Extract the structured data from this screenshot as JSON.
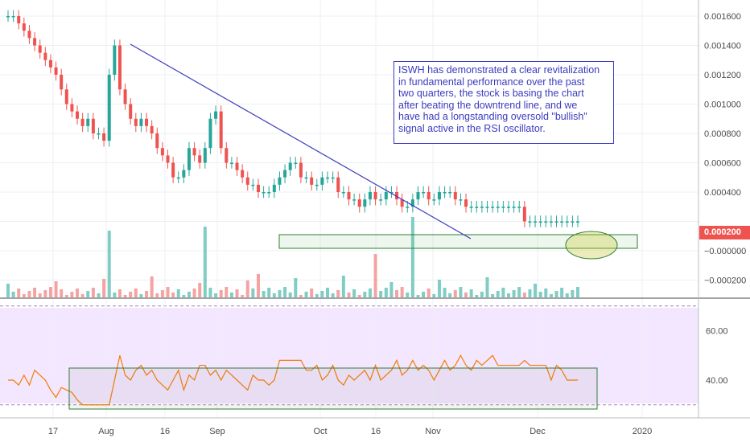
{
  "chart_data": [
    {
      "type": "bar",
      "panel": "price",
      "symbol": "ISWH",
      "x_ticks": [
        "17",
        "Aug",
        "16",
        "Sep",
        "Oct",
        "16",
        "Nov",
        "Dec",
        "2020"
      ],
      "y_ticks": [
        "0.001600",
        "0.001400",
        "0.001200",
        "0.001000",
        "0.000800",
        "0.000600",
        "0.000400",
        "0.000200",
        "−0.000000",
        "−0.000200"
      ],
      "ylim": [
        -0.0002,
        0.0017
      ],
      "current_price": "0.000200",
      "annotation": "ISWH has demonstrated a clear revitalization\nin fundamental performance over the past\ntwo quarters, the stock is basing the chart\nafter beating the downtrend line, and we\nhave had a longstanding oversold \"bullish\"\nsignal active in the RSI oscillator.",
      "close_values": [
        0.0016,
        0.0016,
        0.00155,
        0.0015,
        0.00145,
        0.0014,
        0.00135,
        0.0013,
        0.00125,
        0.0012,
        0.0011,
        0.001,
        0.00095,
        0.0009,
        0.00085,
        0.0009,
        0.0008,
        0.0008,
        0.00075,
        0.0012,
        0.0014,
        0.0011,
        0.001,
        0.0009,
        0.00085,
        0.0009,
        0.00085,
        0.0008,
        0.0007,
        0.00065,
        0.0006,
        0.0005,
        0.0005,
        0.00055,
        0.0007,
        0.00065,
        0.0006,
        0.0007,
        0.0009,
        0.00095,
        0.0007,
        0.0006,
        0.0006,
        0.00055,
        0.0005,
        0.00045,
        0.00045,
        0.0004,
        0.0004,
        0.0004,
        0.00045,
        0.0005,
        0.00055,
        0.0006,
        0.0006,
        0.0005,
        0.0005,
        0.00045,
        0.00045,
        0.0005,
        0.0005,
        0.0005,
        0.0004,
        0.0004,
        0.00035,
        0.00035,
        0.0003,
        0.00035,
        0.0004,
        0.00035,
        0.00035,
        0.0004,
        0.0004,
        0.00035,
        0.0003,
        0.0003,
        0.00035,
        0.0004,
        0.0004,
        0.00035,
        0.00035,
        0.0004,
        0.0004,
        0.0004,
        0.00035,
        0.00035,
        0.0003,
        0.0003,
        0.0003,
        0.0003,
        0.0003,
        0.0003,
        0.0003,
        0.0003,
        0.0003,
        0.0003,
        0.0003,
        0.0002,
        0.0002,
        0.0002,
        0.0002,
        0.0002,
        0.0002,
        0.0002,
        0.0002,
        0.0002,
        0.0002,
        0.0002
      ],
      "colors": {
        "up": "#26a69a",
        "down": "#ef5350",
        "trendline": "#3b3bc0",
        "base_box": "#2e7d32",
        "volume_up": "#7fcdc4",
        "volume_down": "#f4a3a2"
      }
    },
    {
      "type": "line",
      "panel": "rsi",
      "name": "RSI",
      "y_ticks": [
        "60.00",
        "40.00"
      ],
      "ylim": [
        20,
        75
      ],
      "bands": [
        70,
        30
      ],
      "values": [
        40,
        40,
        38,
        42,
        38,
        44,
        42,
        40,
        36,
        33,
        37,
        36,
        35,
        32,
        30,
        30,
        30,
        30,
        30,
        30,
        40,
        50,
        42,
        40,
        44,
        46,
        42,
        44,
        40,
        38,
        36,
        40,
        44,
        36,
        42,
        40,
        46,
        46,
        42,
        44,
        40,
        44,
        42,
        40,
        38,
        36,
        42,
        40,
        40,
        38,
        40,
        48,
        48,
        48,
        48,
        48,
        44,
        44,
        46,
        40,
        42,
        46,
        40,
        38,
        42,
        40,
        42,
        44,
        40,
        46,
        40,
        42,
        44,
        48,
        42,
        44,
        48,
        44,
        46,
        44,
        40,
        44,
        48,
        44,
        46,
        50,
        46,
        44,
        48,
        46,
        48,
        50,
        46,
        46,
        46,
        46,
        46,
        48,
        46,
        46,
        46,
        46,
        40,
        46,
        44,
        40,
        40,
        40
      ],
      "color": "#f57c00"
    }
  ]
}
